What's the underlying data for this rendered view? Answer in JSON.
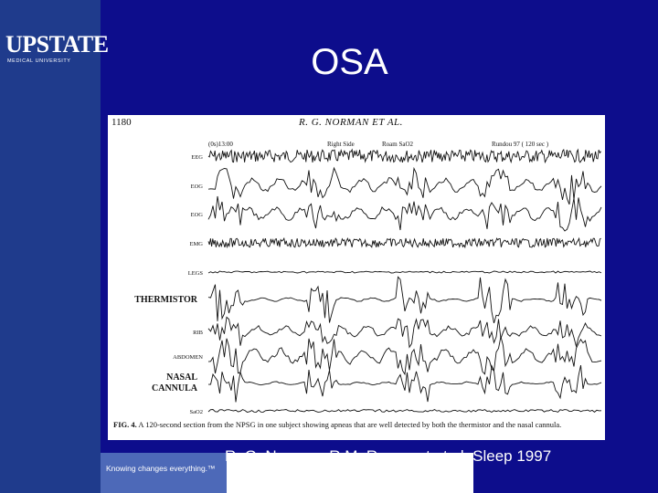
{
  "branding": {
    "logo_word": "UPSTATE",
    "logo_sub": "MEDICAL UNIVERSITY",
    "tagline": "Knowing changes everything.™"
  },
  "slide": {
    "title": "OSA",
    "citation": "R. G. Norman, R.M. Rapoport et al. Sleep 1997"
  },
  "figure": {
    "page_number": "1180",
    "authors": "R. G. NORMAN ET AL.",
    "header_marks": [
      "(0s)13:00",
      "Right Side",
      "Roam SaO2",
      "Rundou 97 ( 120 sec )"
    ],
    "channels": [
      {
        "label": "EEG",
        "emphasis": false
      },
      {
        "label": "EOG",
        "emphasis": false
      },
      {
        "label": "EOG",
        "emphasis": false
      },
      {
        "label": "EMG",
        "emphasis": false
      },
      {
        "label": "LEGS",
        "emphasis": false
      },
      {
        "label": "THERMISTOR",
        "emphasis": true
      },
      {
        "label": "RIB",
        "emphasis": false
      },
      {
        "label": "ABDOMEN",
        "emphasis": false
      },
      {
        "label": "NASAL CANNULA",
        "emphasis": true
      },
      {
        "label": "SaO2",
        "emphasis": false
      }
    ],
    "caption_label": "FIG. 4.",
    "caption_text": "A 120-second section from the NPSG in one subject showing apneas that are well detected by both the thermistor and the nasal cannula."
  }
}
